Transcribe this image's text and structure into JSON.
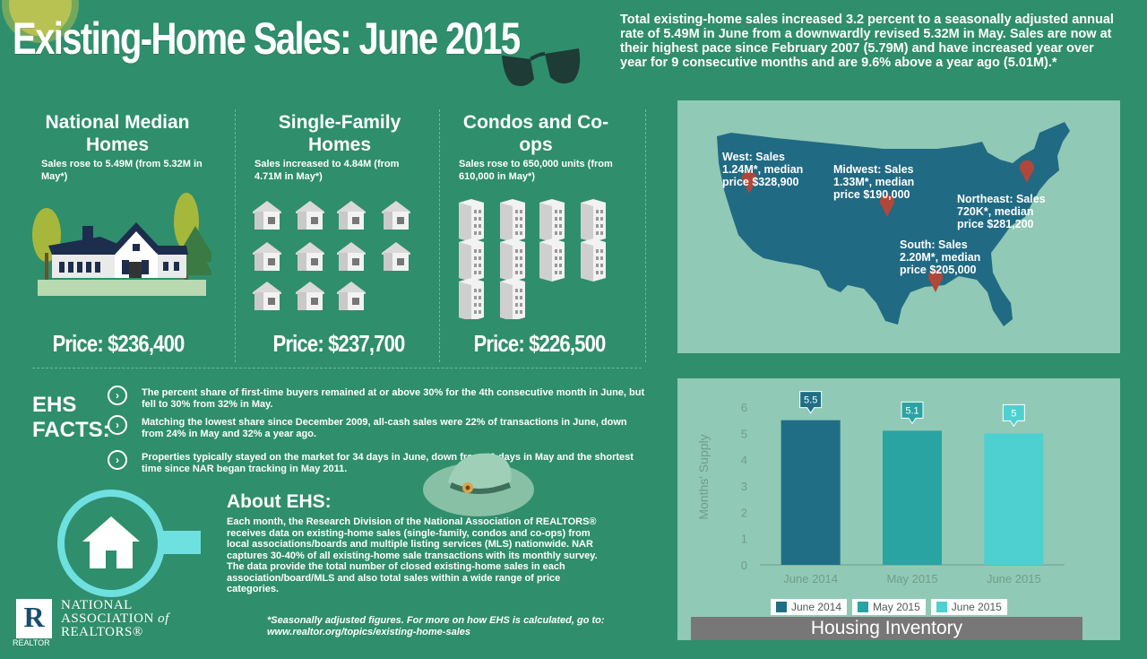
{
  "header": {
    "title": "Existing-Home Sales: June 2015",
    "intro": "Total existing-home sales increased 3.2 percent to a seasonally adjusted annual rate of 5.49M in June from a downwardly revised 5.32M in May.  Sales are now at their highest pace since February 2007 (5.79M) and have increased year over year for 9 consecutive months and are 9.6% above a year ago (5.01M).*"
  },
  "columns": [
    {
      "heading": "National Median Homes",
      "text": "Sales rose to 5.49M (from 5.32M in May*)",
      "price": "Price: $236,400"
    },
    {
      "heading": "Single-Family Homes",
      "text": "Sales increased to 4.84M (from 4.71M in May*)",
      "price": "Price: $237,700"
    },
    {
      "heading": "Condos and Co-ops",
      "text": "Sales rose to 650,000 units (from 610,000 in May*)",
      "price": "Price: $226,500"
    }
  ],
  "facts": {
    "title_line1": "EHS",
    "title_line2": "FACTS:",
    "items": [
      "The percent share of first-time buyers remained at or above 30% for the 4th consecutive month in June, but fell to 30% from 32% in May.",
      "Matching the lowest share since December 2009, all-cash sales were 22% of transactions in June, down from 24% in May and 32% a year ago.",
      "Properties typically stayed on the market for 34 days in June, down from 40 days in May and the shortest time since NAR began tracking in May 2011."
    ]
  },
  "about": {
    "heading": "About EHS:",
    "text": "Each month, the Research Division of the National Association of REALTORS® receives data on existing-home sales (single-family, condos and co-ops) from local associations/boards and multiple listing services (MLS) nationwide. NAR captures 30-40% of all existing-home sale transactions with its monthly survey. The data provide the total number of closed existing-home sales in each association/board/MLS and also total sales within a wide range of price categories."
  },
  "footnote": {
    "line1": "*Seasonally adjusted figures. For more on how EHS is calculated, go to:",
    "line2": "www.realtor.org/topics/existing-home-sales"
  },
  "nar": {
    "logo_letter": "R",
    "logo_sub": "REALTOR",
    "line1": "NATIONAL",
    "line2": "ASSOCIATION",
    "line2b": "of",
    "line3": "REALTORS®"
  },
  "regions": {
    "west": {
      "l1": "West: Sales",
      "l2": "1.24M*, median",
      "l3": "price $328,900"
    },
    "midwest": {
      "l1": "Midwest: Sales",
      "l2": "1.33M*, median",
      "l3": "price $190,000"
    },
    "northeast": {
      "l1": "Northeast: Sales",
      "l2": "720K*, median",
      "l3": "price $281,200"
    },
    "south": {
      "l1": "South: Sales",
      "l2": "2.20M*, median",
      "l3": "price $205,000"
    }
  },
  "colors": {
    "background": "#2f8e6c",
    "panel": "#90c9b5",
    "map": "#216a83",
    "pin": "#b0473a",
    "bar_june2014": "#1f6e86",
    "bar_may2015": "#2aa3a3",
    "bar_june2015": "#4fd0d0"
  },
  "chart_data": {
    "type": "bar",
    "title": "Housing Inventory",
    "ylabel": "Months' Supply",
    "categories": [
      "June 2014",
      "May 2015",
      "June 2015"
    ],
    "series": [
      {
        "name": "June 2014",
        "values": [
          5.5,
          null,
          null
        ]
      },
      {
        "name": "May 2015",
        "values": [
          null,
          5.1,
          null
        ]
      },
      {
        "name": "June 2015",
        "values": [
          null,
          null,
          5.0
        ]
      }
    ],
    "values": [
      5.5,
      5.1,
      5.0
    ],
    "data_labels": [
      "5.5",
      "5.1",
      "5"
    ],
    "yticks": [
      "0",
      "1",
      "2",
      "3",
      "4",
      "5",
      "6"
    ],
    "ylim": [
      0,
      6
    ],
    "grid": false,
    "legend": "bottom"
  }
}
